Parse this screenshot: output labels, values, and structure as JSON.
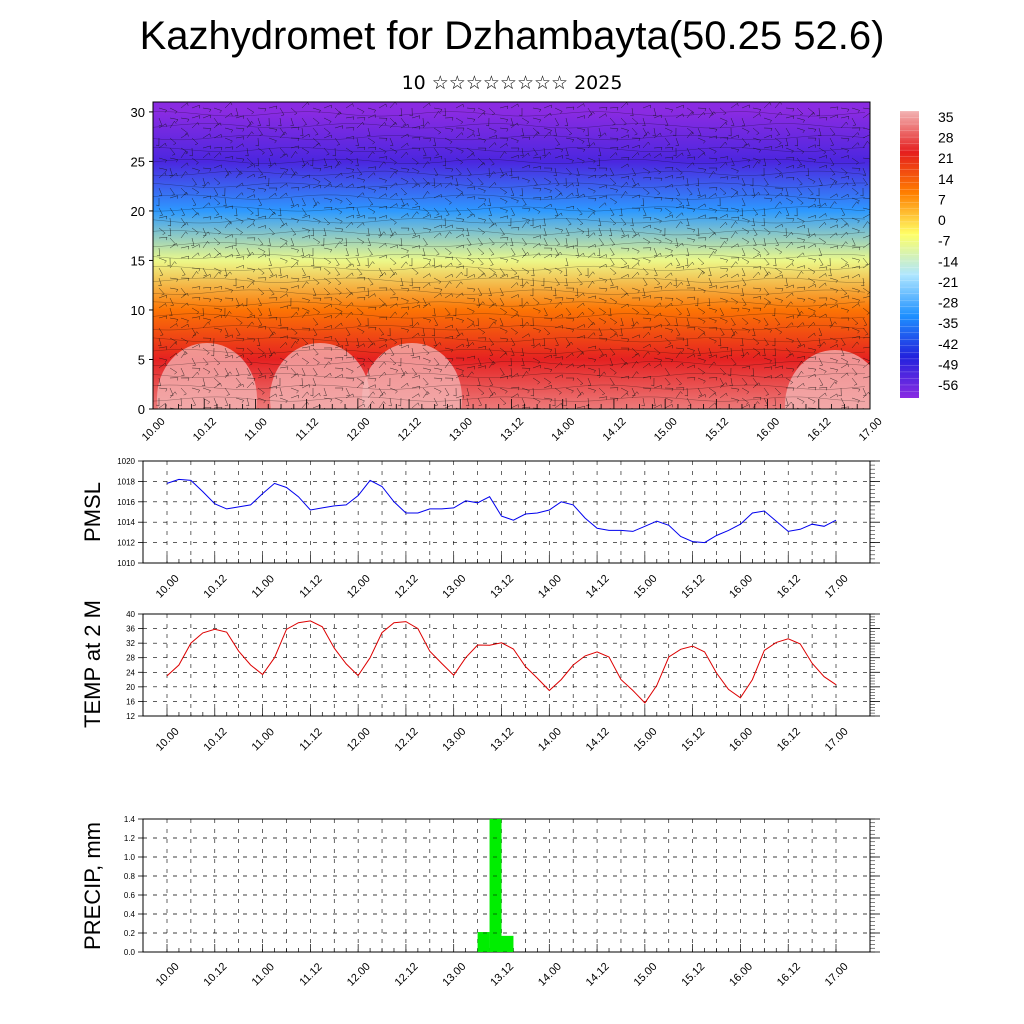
{
  "header": {
    "title": "Kazhydromet for Dzhambayta(50.25 52.6)",
    "subtitle": "10 ☆☆☆☆☆☆☆☆ 2025"
  },
  "time_labels": [
    "10.00",
    "10.12",
    "11.00",
    "11.12",
    "12.00",
    "12.12",
    "13.00",
    "13.12",
    "14.00",
    "14.12",
    "15.00",
    "15.12",
    "16.00",
    "16.12",
    "17.00"
  ],
  "chart_data": [
    {
      "type": "heatmap",
      "name": "temperature-cross-section",
      "y_ticks": [
        "0",
        "5",
        "10",
        "15",
        "20",
        "25",
        "30"
      ],
      "ylim": [
        0,
        31
      ],
      "colorbar_labels": [
        "35",
        "28",
        "21",
        "14",
        "7",
        "0",
        "-7",
        "-14",
        "-21",
        "-28",
        "-35",
        "-42",
        "-49",
        "-56"
      ],
      "colorbar_colors": [
        "#f2b3b3",
        "#e51e1e",
        "#ff7f00",
        "#ffff66",
        "#aee6ff",
        "#1e90ff",
        "#2222dd",
        "#8a2be2"
      ],
      "level_temps": [
        {
          "level": 0,
          "temp": 30
        },
        {
          "level": 5,
          "temp": 22
        },
        {
          "level": 10,
          "temp": 10
        },
        {
          "level": 15,
          "temp": -8
        },
        {
          "level": 20,
          "temp": -30
        },
        {
          "level": 25,
          "temp": -50
        },
        {
          "level": 30,
          "temp": -58
        }
      ],
      "overlay": "wind barbs"
    },
    {
      "type": "line",
      "ylabel": "PMSL",
      "ylim": [
        1010,
        1020
      ],
      "y_ticks": [
        "1010",
        "1012",
        "1014",
        "1016",
        "1018",
        "1020"
      ],
      "color": "#0000ee",
      "x": [
        0,
        3,
        6,
        9,
        12,
        15,
        18,
        21,
        24,
        27,
        30,
        33,
        36,
        39,
        42,
        45,
        48,
        51,
        54,
        57,
        60,
        63,
        66,
        69,
        72,
        75,
        78,
        81,
        84,
        87,
        90,
        93,
        96,
        99,
        102,
        105,
        108,
        111,
        114,
        117,
        120,
        123,
        126,
        129,
        132,
        135,
        138,
        141,
        144,
        147,
        150,
        153,
        156,
        159,
        162,
        165,
        168
      ],
      "values": [
        1017.8,
        1018.2,
        1018.1,
        1017.0,
        1015.8,
        1015.3,
        1015.5,
        1015.7,
        1016.8,
        1017.8,
        1017.4,
        1016.5,
        1015.2,
        1015.4,
        1015.6,
        1015.7,
        1016.6,
        1018.1,
        1017.5,
        1016.0,
        1014.9,
        1014.9,
        1015.3,
        1015.3,
        1015.4,
        1016.1,
        1015.9,
        1016.5,
        1014.6,
        1014.2,
        1014.8,
        1014.9,
        1015.2,
        1016.0,
        1015.7,
        1014.4,
        1013.4,
        1013.2,
        1013.2,
        1013.1,
        1013.6,
        1014.1,
        1013.7,
        1012.6,
        1012.1,
        1012.0,
        1012.7,
        1013.2,
        1013.8,
        1014.9,
        1015.1,
        1014.1,
        1013.1,
        1013.3,
        1013.8,
        1013.6,
        1014.2
      ]
    },
    {
      "type": "line",
      "ylabel": "TEMP at 2 M",
      "ylim": [
        12,
        40
      ],
      "y_ticks": [
        "12",
        "16",
        "20",
        "24",
        "28",
        "32",
        "36",
        "40"
      ],
      "color": "#dd0000",
      "x": [
        0,
        3,
        6,
        9,
        12,
        15,
        18,
        21,
        24,
        27,
        30,
        33,
        36,
        39,
        42,
        45,
        48,
        51,
        54,
        57,
        60,
        63,
        66,
        69,
        72,
        75,
        78,
        81,
        84,
        87,
        90,
        93,
        96,
        99,
        102,
        105,
        108,
        111,
        114,
        117,
        120,
        123,
        126,
        129,
        132,
        135,
        138,
        141,
        144,
        147,
        150,
        153,
        156,
        159,
        162,
        165,
        168
      ],
      "values": [
        23,
        26,
        32,
        34.8,
        35.8,
        35,
        29.8,
        26,
        23.4,
        28,
        35.8,
        37.6,
        38.1,
        36.5,
        30.6,
        26.3,
        23.1,
        28,
        34.9,
        37.6,
        37.9,
        36,
        29.8,
        26.4,
        23.2,
        28,
        31.5,
        31.4,
        32.1,
        30.4,
        25.6,
        22.4,
        19,
        22,
        26,
        28.5,
        29.6,
        28.2,
        22,
        19,
        15.6,
        20.4,
        28.2,
        30.3,
        31.2,
        29.6,
        23.8,
        19.3,
        17,
        22,
        30,
        32.2,
        33.2,
        31.8,
        26.5,
        22.8,
        20.6
      ]
    },
    {
      "type": "bar",
      "ylabel": "PRECIP, mm",
      "ylim": [
        0,
        1.4
      ],
      "y_ticks": [
        "0.0",
        "0.2",
        "0.4",
        "0.6",
        "0.8",
        "1.0",
        "1.2",
        "1.4"
      ],
      "color": "#00ee00",
      "bars": [
        {
          "x_start": 78,
          "x_end": 81,
          "value": 0.21
        },
        {
          "x_start": 81,
          "x_end": 84,
          "value": 1.4
        },
        {
          "x_start": 84,
          "x_end": 87,
          "value": 0.17
        }
      ]
    }
  ]
}
